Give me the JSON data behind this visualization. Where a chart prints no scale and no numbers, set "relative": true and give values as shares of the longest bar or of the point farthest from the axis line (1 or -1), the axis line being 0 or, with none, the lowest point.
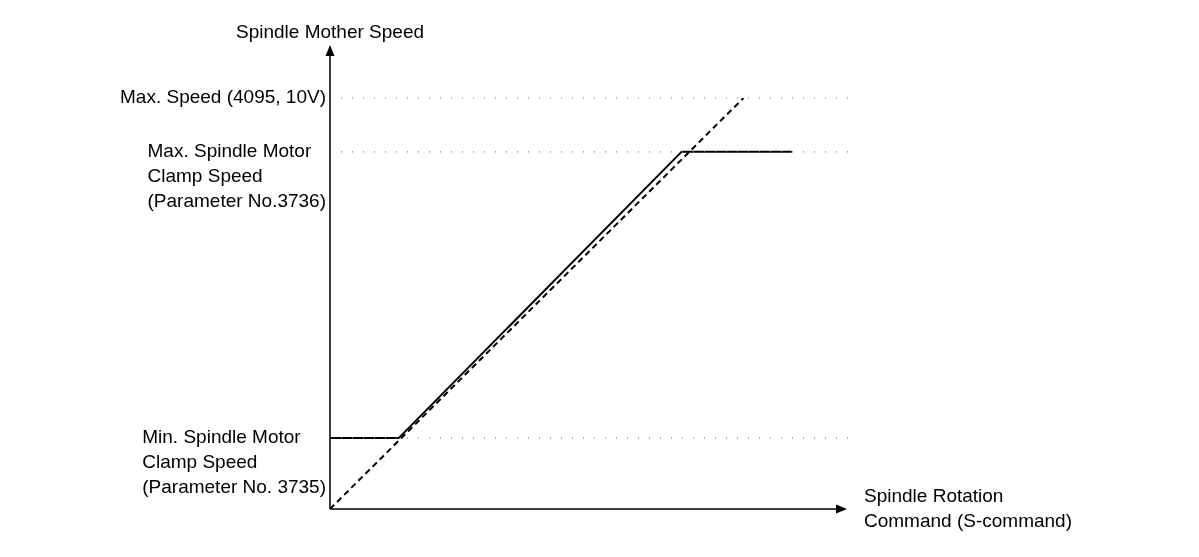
{
  "chart_data": {
    "type": "line",
    "relative": true,
    "xlabel": "Spindle Rotation Command (S-command)",
    "ylabel": "Spindle Mother Speed",
    "legend": false,
    "marker": "none",
    "categories": [
      null,
      null,
      null,
      null,
      null,
      null,
      null,
      null,
      null,
      null,
      null,
      null,
      null,
      null,
      null,
      null,
      null,
      null,
      null,
      null,
      null,
      null,
      null,
      null,
      null,
      null,
      null,
      null,
      null,
      null,
      null,
      null,
      null,
      null,
      null,
      null,
      null,
      null,
      null,
      null,
      null,
      null,
      null,
      null,
      null,
      null,
      null,
      null,
      null,
      null,
      null,
      null,
      null,
      null,
      null,
      null,
      null,
      null,
      null,
      null,
      null,
      null,
      null,
      null,
      null,
      null,
      null,
      null,
      null,
      null,
      null,
      null,
      null,
      null,
      null
    ],
    "series": [
      {
        "values": [
          0.173,
          null,
          null,
          null,
          null,
          null,
          null,
          null,
          null,
          null,
          0.173,
          null,
          null,
          null,
          null,
          null,
          null,
          null,
          null,
          null,
          null,
          null,
          null,
          null,
          null,
          null,
          null,
          null,
          null,
          null,
          null,
          null,
          null,
          null,
          null,
          null,
          null,
          null,
          null,
          null,
          null,
          null,
          null,
          null,
          null,
          null,
          null,
          null,
          null,
          null,
          null,
          0.869,
          null,
          null,
          null,
          null,
          null,
          null,
          null,
          null,
          null,
          null,
          null,
          null,
          null,
          null,
          null,
          0.869,
          null,
          null,
          null,
          null,
          null,
          null,
          null
        ],
        "color": "#000000",
        "line_style": "solid"
      },
      {
        "values": [
          0,
          null,
          null,
          null,
          null,
          null,
          null,
          null,
          null,
          null,
          null,
          null,
          null,
          null,
          null,
          null,
          null,
          null,
          null,
          null,
          null,
          null,
          null,
          null,
          null,
          null,
          null,
          null,
          null,
          null,
          null,
          null,
          null,
          null,
          null,
          null,
          null,
          null,
          null,
          null,
          null,
          null,
          null,
          null,
          null,
          null,
          null,
          null,
          null,
          null,
          null,
          null,
          null,
          null,
          null,
          null,
          null,
          null,
          null,
          null,
          1,
          null,
          null,
          null,
          null,
          null,
          null,
          null,
          null,
          null,
          null,
          null,
          null,
          null,
          null
        ],
        "color": "#000000",
        "line_style": "dashed"
      }
    ],
    "ref_lines": [
      {
        "axis": "y",
        "value": 1,
        "label": "Max. Speed (4095, 10V)",
        "color": "#808080",
        "line_style": "dotted"
      },
      {
        "axis": "y",
        "value": 0.869,
        "label": "Max. Spindle Motor Clamp Speed (Parameter No.3736)",
        "color": "#808080",
        "line_style": "dotted"
      },
      {
        "axis": "y",
        "value": 0.173,
        "label": "Min. Spindle Motor Clamp Speed (Parameter No. 3735)",
        "color": "#808080",
        "line_style": "dotted"
      }
    ]
  }
}
